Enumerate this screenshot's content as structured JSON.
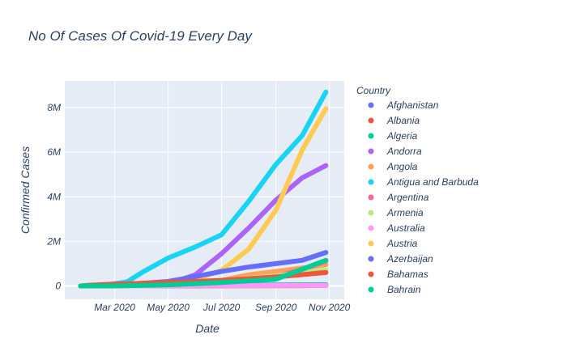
{
  "chart_data": {
    "type": "scatter",
    "title": "No Of Cases Of Covid-19 Every Day",
    "xlabel": "Date",
    "ylabel": "Confirmed Cases",
    "x_range": [
      "2020-01-04",
      "2020-11-18"
    ],
    "ylim": [
      -600000,
      9200000
    ],
    "x_ticks": [
      {
        "date": "2020-03-01",
        "label": "Mar 2020"
      },
      {
        "date": "2020-05-01",
        "label": "May 2020"
      },
      {
        "date": "2020-07-01",
        "label": "Jul 2020"
      },
      {
        "date": "2020-09-01",
        "label": "Sep 2020"
      },
      {
        "date": "2020-11-01",
        "label": "Nov 2020"
      }
    ],
    "y_ticks": [
      {
        "value": 0,
        "label": "0"
      },
      {
        "value": 2000000,
        "label": "2M"
      },
      {
        "value": 4000000,
        "label": "4M"
      },
      {
        "value": 6000000,
        "label": "6M"
      },
      {
        "value": 8000000,
        "label": "8M"
      }
    ],
    "grid": true,
    "legend_title": "Country",
    "legend_position": "right",
    "series": [
      {
        "name": "Afghanistan",
        "color": "#636efa",
        "points": [
          [
            "2020-01-22",
            0
          ],
          [
            "2020-03-01",
            0
          ],
          [
            "2020-04-15",
            0
          ],
          [
            "2020-06-01",
            20000
          ],
          [
            "2020-08-01",
            37000
          ],
          [
            "2020-10-01",
            39000
          ],
          [
            "2020-10-28",
            41000
          ]
        ]
      },
      {
        "name": "Albania",
        "color": "#EF553B",
        "points": [
          [
            "2020-01-22",
            0
          ],
          [
            "2020-04-01",
            0
          ],
          [
            "2020-06-01",
            1000
          ],
          [
            "2020-08-01",
            7000
          ],
          [
            "2020-10-01",
            14000
          ],
          [
            "2020-10-28",
            20000
          ]
        ]
      },
      {
        "name": "Algeria",
        "color": "#00cc96",
        "points": [
          [
            "2020-01-22",
            0
          ],
          [
            "2020-04-01",
            800
          ],
          [
            "2020-06-01",
            9500
          ],
          [
            "2020-08-01",
            32000
          ],
          [
            "2020-10-01",
            52000
          ],
          [
            "2020-10-28",
            57000
          ]
        ]
      },
      {
        "name": "Andorra",
        "color": "#ab63fa",
        "points": [
          [
            "2020-01-22",
            0
          ],
          [
            "2020-03-15",
            0
          ],
          [
            "2020-04-15",
            20000
          ],
          [
            "2020-05-01",
            90000
          ],
          [
            "2020-06-01",
            500000
          ],
          [
            "2020-07-01",
            1450000
          ],
          [
            "2020-08-01",
            2600000
          ],
          [
            "2020-09-01",
            3850000
          ],
          [
            "2020-10-01",
            4850000
          ],
          [
            "2020-10-28",
            5400000
          ]
        ]
      },
      {
        "name": "Angola",
        "color": "#FFA15A",
        "points": [
          [
            "2020-01-22",
            0
          ],
          [
            "2020-04-01",
            0
          ],
          [
            "2020-06-01",
            100000
          ],
          [
            "2020-07-01",
            250000
          ],
          [
            "2020-08-01",
            500000
          ],
          [
            "2020-09-01",
            650000
          ],
          [
            "2020-10-01",
            800000
          ],
          [
            "2020-10-28",
            950000
          ]
        ]
      },
      {
        "name": "Antigua and Barbuda",
        "color": "#19d3f3",
        "points": [
          [
            "2020-01-22",
            0
          ],
          [
            "2020-02-20",
            50000
          ],
          [
            "2020-03-01",
            100000
          ],
          [
            "2020-03-15",
            180000
          ],
          [
            "2020-04-01",
            600000
          ],
          [
            "2020-05-01",
            1250000
          ],
          [
            "2020-06-01",
            1750000
          ],
          [
            "2020-07-01",
            2300000
          ],
          [
            "2020-08-01",
            3800000
          ],
          [
            "2020-09-01",
            5450000
          ],
          [
            "2020-10-01",
            6750000
          ],
          [
            "2020-10-28",
            8700000
          ]
        ]
      },
      {
        "name": "Argentina",
        "color": "#FF6692",
        "points": [
          [
            "2020-01-22",
            0
          ],
          [
            "2020-04-01",
            1000
          ],
          [
            "2020-06-01",
            17000
          ],
          [
            "2020-07-01",
            70000
          ],
          [
            "2020-08-01",
            180000
          ],
          [
            "2020-09-01",
            420000
          ],
          [
            "2020-10-01",
            740000
          ],
          [
            "2020-10-28",
            1120000
          ]
        ]
      },
      {
        "name": "Armenia",
        "color": "#B6E880",
        "points": [
          [
            "2020-01-22",
            0
          ],
          [
            "2020-04-01",
            500
          ],
          [
            "2020-06-01",
            50000
          ],
          [
            "2020-07-01",
            200000
          ],
          [
            "2020-08-01",
            350000
          ],
          [
            "2020-09-01",
            450000
          ],
          [
            "2020-10-01",
            600000
          ],
          [
            "2020-10-28",
            700000
          ]
        ]
      },
      {
        "name": "Australia",
        "color": "#FF97FF",
        "points": [
          [
            "2020-01-22",
            0
          ],
          [
            "2020-03-01",
            30
          ],
          [
            "2020-05-01",
            7000
          ],
          [
            "2020-08-01",
            18000
          ],
          [
            "2020-10-01",
            27000
          ],
          [
            "2020-10-28",
            27600
          ]
        ]
      },
      {
        "name": "Austria",
        "color": "#FECB52",
        "points": [
          [
            "2020-01-22",
            0
          ],
          [
            "2020-03-15",
            0
          ],
          [
            "2020-04-01",
            110000
          ],
          [
            "2020-05-01",
            160000
          ],
          [
            "2020-06-01",
            300000
          ],
          [
            "2020-07-01",
            700000
          ],
          [
            "2020-08-01",
            1650000
          ],
          [
            "2020-09-01",
            3400000
          ],
          [
            "2020-10-01",
            6100000
          ],
          [
            "2020-10-28",
            7950000
          ]
        ]
      },
      {
        "name": "Azerbaijan",
        "color": "#636efa",
        "points": [
          [
            "2020-01-22",
            0
          ],
          [
            "2020-03-01",
            20000
          ],
          [
            "2020-04-01",
            120000
          ],
          [
            "2020-05-01",
            200000
          ],
          [
            "2020-06-01",
            420000
          ],
          [
            "2020-07-01",
            650000
          ],
          [
            "2020-08-01",
            850000
          ],
          [
            "2020-09-01",
            1000000
          ],
          [
            "2020-10-01",
            1150000
          ],
          [
            "2020-10-28",
            1500000
          ]
        ]
      },
      {
        "name": "Bahamas",
        "color": "#EF553B",
        "points": [
          [
            "2020-01-22",
            0
          ],
          [
            "2020-02-01",
            30000
          ],
          [
            "2020-03-01",
            80000
          ],
          [
            "2020-05-01",
            150000
          ],
          [
            "2020-07-01",
            250000
          ],
          [
            "2020-09-01",
            400000
          ],
          [
            "2020-10-28",
            600000
          ]
        ]
      },
      {
        "name": "Bahrain",
        "color": "#00cc96",
        "points": [
          [
            "2020-01-22",
            0
          ],
          [
            "2020-03-01",
            50
          ],
          [
            "2020-05-01",
            50000
          ],
          [
            "2020-07-01",
            150000
          ],
          [
            "2020-09-01",
            300000
          ],
          [
            "2020-10-28",
            1150000
          ]
        ]
      }
    ]
  }
}
